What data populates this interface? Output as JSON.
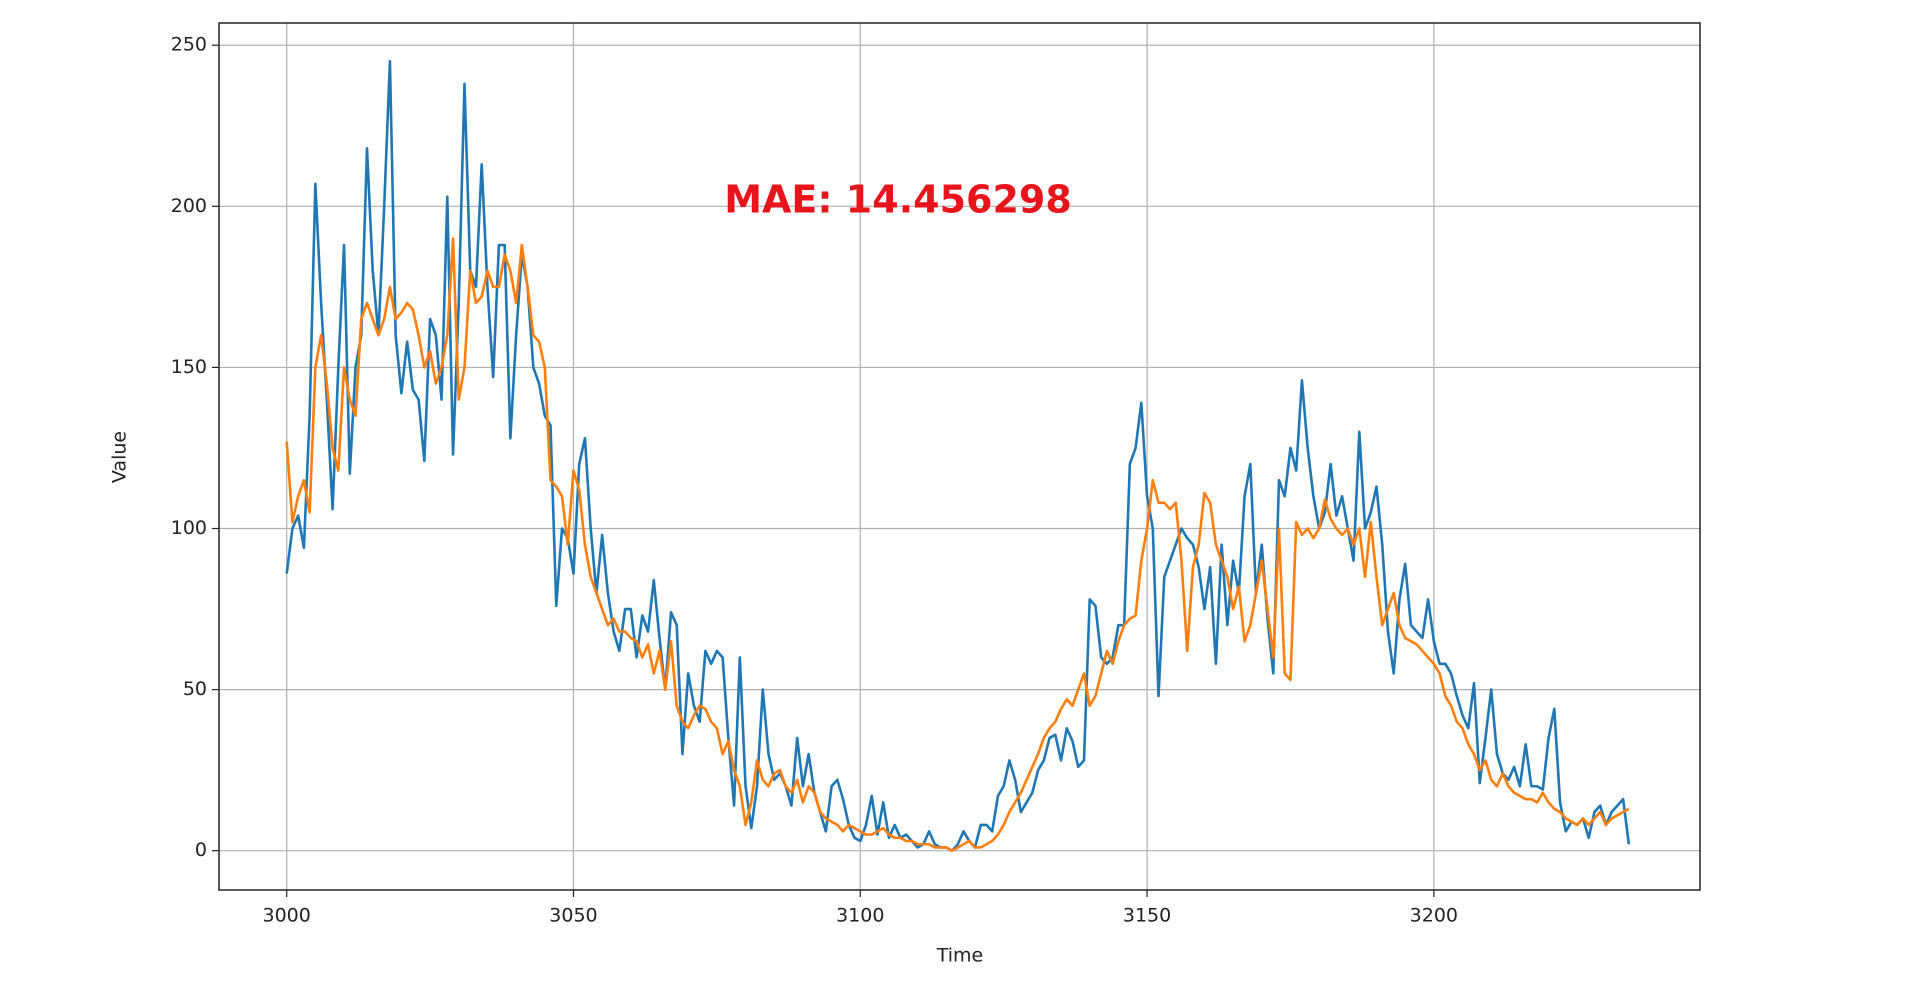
{
  "chart_data": {
    "type": "line",
    "xlabel": "Time",
    "ylabel": "Value",
    "annotation": "MAE: 14.456298",
    "annotation_color": "#e8141b",
    "x": [
      3000,
      3001,
      3002,
      3003,
      3004,
      3005,
      3006,
      3007,
      3008,
      3009,
      3010,
      3011,
      3012,
      3013,
      3014,
      3015,
      3016,
      3017,
      3018,
      3019,
      3020,
      3021,
      3022,
      3023,
      3024,
      3025,
      3026,
      3027,
      3028,
      3029,
      3030,
      3031,
      3032,
      3033,
      3034,
      3035,
      3036,
      3037,
      3038,
      3039,
      3040,
      3041,
      3042,
      3043,
      3044,
      3045,
      3046,
      3047,
      3048,
      3049,
      3050,
      3051,
      3052,
      3053,
      3054,
      3055,
      3056,
      3057,
      3058,
      3059,
      3060,
      3061,
      3062,
      3063,
      3064,
      3065,
      3066,
      3067,
      3068,
      3069,
      3070,
      3071,
      3072,
      3073,
      3074,
      3075,
      3076,
      3077,
      3078,
      3079,
      3080,
      3081,
      3082,
      3083,
      3084,
      3085,
      3086,
      3087,
      3088,
      3089,
      3090,
      3091,
      3092,
      3093,
      3094,
      3095,
      3096,
      3097,
      3098,
      3099,
      3100,
      3101,
      3102,
      3103,
      3104,
      3105,
      3106,
      3107,
      3108,
      3109,
      3110,
      3111,
      3112,
      3113,
      3114,
      3115,
      3116,
      3117,
      3118,
      3119,
      3120,
      3121,
      3122,
      3123,
      3124,
      3125,
      3126,
      3127,
      3128,
      3129,
      3130,
      3131,
      3132,
      3133,
      3134,
      3135,
      3136,
      3137,
      3138,
      3139,
      3140,
      3141,
      3142,
      3143,
      3144,
      3145,
      3146,
      3147,
      3148,
      3149,
      3150,
      3151,
      3152,
      3153,
      3154,
      3155,
      3156,
      3157,
      3158,
      3159,
      3160,
      3161,
      3162,
      3163,
      3164,
      3165,
      3166,
      3167,
      3168,
      3169,
      3170,
      3171,
      3172,
      3173,
      3174,
      3175,
      3176,
      3177,
      3178,
      3179,
      3180,
      3181,
      3182,
      3183,
      3184,
      3185,
      3186,
      3187,
      3188,
      3189,
      3190,
      3191,
      3192,
      3193,
      3194,
      3195,
      3196,
      3197,
      3198,
      3199,
      3200,
      3201,
      3202,
      3203,
      3204,
      3205,
      3206,
      3207,
      3208,
      3209,
      3210,
      3211,
      3212,
      3213,
      3214,
      3215,
      3216,
      3217,
      3218,
      3219,
      3220,
      3221,
      3222,
      3223,
      3224,
      3225,
      3226,
      3227,
      3228,
      3229,
      3230,
      3231,
      3232,
      3233,
      3234
    ],
    "series": [
      {
        "color": "#1f77b4",
        "values": [
          86,
          100,
          104,
          94,
          135,
          207,
          170,
          140,
          106,
          150,
          188,
          117,
          150,
          160,
          218,
          180,
          160,
          200,
          245,
          160,
          142,
          158,
          143,
          140,
          121,
          165,
          160,
          140,
          203,
          123,
          170,
          238,
          180,
          175,
          213,
          175,
          147,
          188,
          188,
          128,
          160,
          185,
          175,
          150,
          145,
          135,
          132,
          76,
          100,
          97,
          86,
          120,
          128,
          100,
          80,
          98,
          80,
          68,
          62,
          75,
          75,
          60,
          73,
          68,
          84,
          66,
          50,
          74,
          70,
          30,
          55,
          45,
          40,
          62,
          58,
          62,
          60,
          35,
          14,
          60,
          20,
          7,
          20,
          50,
          30,
          22,
          24,
          20,
          14,
          35,
          20,
          30,
          18,
          12,
          6,
          20,
          22,
          16,
          8,
          4,
          3,
          8,
          17,
          5,
          15,
          4,
          8,
          4,
          5,
          3,
          1,
          2,
          6,
          2,
          1,
          1,
          0,
          2,
          6,
          3,
          1,
          8,
          8,
          6,
          17,
          20,
          28,
          22,
          12,
          15,
          18,
          25,
          28,
          35,
          36,
          28,
          38,
          34,
          26,
          28,
          78,
          76,
          60,
          58,
          60,
          70,
          70,
          120,
          125,
          139,
          110,
          100,
          48,
          85,
          90,
          95,
          100,
          97,
          95,
          88,
          75,
          88,
          58,
          95,
          70,
          90,
          80,
          110,
          120,
          80,
          95,
          72,
          55,
          115,
          110,
          125,
          118,
          146,
          125,
          110,
          100,
          105,
          120,
          104,
          110,
          100,
          90,
          130,
          100,
          105,
          113,
          95,
          68,
          55,
          78,
          89,
          70,
          68,
          66,
          78,
          65,
          58,
          58,
          55,
          48,
          42,
          38,
          52,
          21,
          35,
          50,
          30,
          24,
          22,
          26,
          20,
          33,
          20,
          20,
          19,
          35,
          44,
          15,
          6,
          9,
          8,
          10,
          4,
          12,
          14,
          8,
          12,
          14,
          16,
          2
        ]
      },
      {
        "color": "#ff7f0e",
        "values": [
          127,
          102,
          110,
          115,
          105,
          150,
          160,
          145,
          125,
          118,
          150,
          140,
          135,
          165,
          170,
          165,
          160,
          165,
          175,
          165,
          167,
          170,
          168,
          160,
          150,
          155,
          145,
          150,
          160,
          190,
          140,
          150,
          180,
          170,
          172,
          180,
          175,
          175,
          185,
          180,
          170,
          188,
          175,
          160,
          158,
          150,
          115,
          113,
          110,
          95,
          118,
          112,
          95,
          85,
          80,
          75,
          70,
          72,
          68,
          68,
          66,
          65,
          60,
          64,
          55,
          62,
          50,
          65,
          45,
          40,
          38,
          42,
          45,
          44,
          40,
          38,
          30,
          34,
          25,
          20,
          8,
          15,
          28,
          22,
          20,
          24,
          25,
          20,
          18,
          22,
          15,
          20,
          18,
          12,
          10,
          9,
          8,
          6,
          8,
          7,
          6,
          5,
          5,
          6,
          7,
          5,
          4,
          4,
          3,
          3,
          2,
          2,
          2,
          1,
          1,
          1,
          0,
          1,
          2,
          3,
          1,
          1,
          2,
          3,
          5,
          8,
          12,
          15,
          18,
          22,
          26,
          30,
          35,
          38,
          40,
          44,
          47,
          45,
          50,
          55,
          45,
          48,
          55,
          62,
          58,
          65,
          70,
          72,
          73,
          90,
          100,
          115,
          108,
          108,
          106,
          108,
          90,
          62,
          88,
          95,
          111,
          108,
          95,
          90,
          85,
          75,
          82,
          65,
          70,
          80,
          90,
          75,
          60,
          100,
          55,
          53,
          102,
          98,
          100,
          97,
          100,
          109,
          103,
          100,
          98,
          100,
          95,
          100,
          85,
          102,
          85,
          70,
          75,
          80,
          70,
          66,
          65,
          64,
          62,
          60,
          58,
          55,
          48,
          45,
          40,
          38,
          33,
          30,
          25,
          28,
          22,
          20,
          24,
          20,
          18,
          17,
          16,
          16,
          15,
          18,
          15,
          13,
          12,
          10,
          9,
          8,
          10,
          8,
          10,
          12,
          8,
          10,
          11,
          12,
          13
        ]
      }
    ],
    "xlim": [
      2988.2,
      3246.4
    ],
    "ylim": [
      -12.2,
      256.9
    ],
    "xticks": [
      3000,
      3050,
      3100,
      3150,
      3200
    ],
    "yticks": [
      0,
      50,
      100,
      150,
      200,
      250
    ],
    "grid": true
  }
}
